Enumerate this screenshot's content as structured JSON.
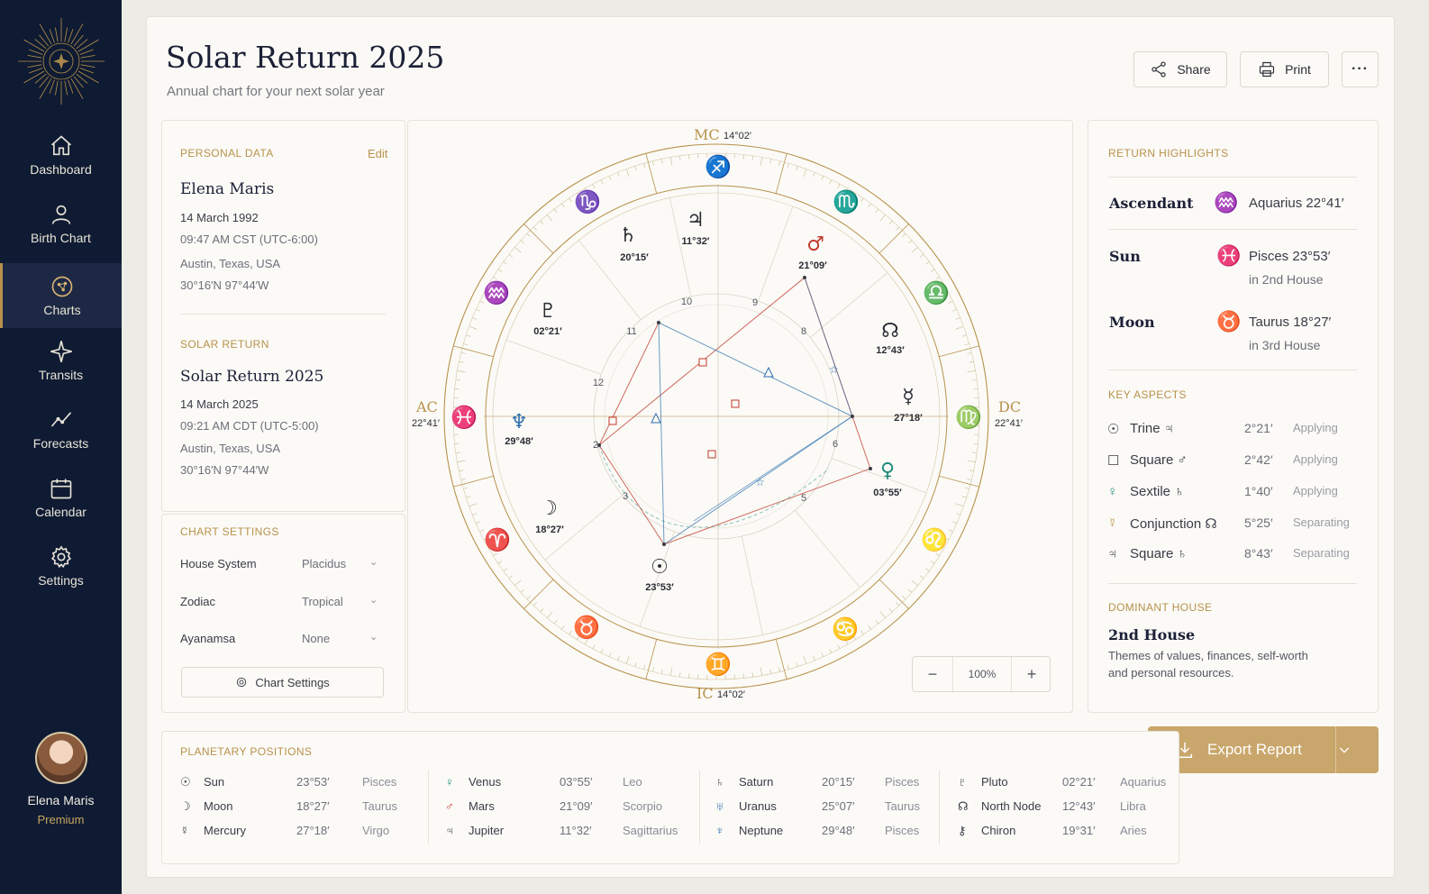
{
  "sidebar": {
    "items": [
      {
        "label": "Dashboard",
        "icon": "home-icon"
      },
      {
        "label": "Birth Chart",
        "icon": "person-icon"
      },
      {
        "label": "Charts",
        "icon": "chart-wheel-icon",
        "active": true
      },
      {
        "label": "Transits",
        "icon": "sparkle-icon"
      },
      {
        "label": "Forecasts",
        "icon": "trend-line-icon"
      },
      {
        "label": "Calendar",
        "icon": "calendar-icon"
      },
      {
        "label": "Settings",
        "icon": "gear-icon"
      }
    ],
    "user": {
      "name": "Elena Maris",
      "plan": "Premium"
    }
  },
  "header": {
    "title": "Solar Return 2025",
    "subtitle": "Annual chart for your next solar year",
    "share": "Share",
    "print": "Print",
    "more": "···"
  },
  "personal": {
    "heading": "PERSONAL DATA",
    "edit": "Edit",
    "name": "Elena Maris",
    "date": "14 March 1992",
    "time": "09:47 AM  CST (UTC-6:00)",
    "place": "Austin, Texas, USA",
    "coords": "30°16′N   97°44′W"
  },
  "solar_return": {
    "heading": "SOLAR RETURN",
    "name": "Solar Return 2025",
    "date": "14 March 2025",
    "time": "09:21 AM  CDT (UTC-5:00)",
    "place": "Austin, Texas, USA",
    "coords": "30°16′N   97°44′W"
  },
  "settings": {
    "heading": "CHART SETTINGS",
    "rows": [
      {
        "label": "House System",
        "value": "Placidus"
      },
      {
        "label": "Zodiac",
        "value": "Tropical"
      },
      {
        "label": "Ayanamsa",
        "value": "None"
      }
    ],
    "button": "Chart Settings"
  },
  "wheel": {
    "angles": {
      "mc": {
        "label": "MC",
        "deg": "14°02′"
      },
      "ic": {
        "label": "IC",
        "deg": "14°02′"
      },
      "ac": {
        "label": "AC",
        "deg": "22°41′"
      },
      "dc": {
        "label": "DC",
        "deg": "22°41′"
      }
    },
    "house_numbers": [
      "10",
      "9",
      "8",
      "11",
      "12",
      "2",
      "3",
      "5",
      "6"
    ],
    "planets": [
      {
        "glyph": "♄",
        "deg": "20°15′"
      },
      {
        "glyph": "♃",
        "deg": "11°32′"
      },
      {
        "glyph": "♂",
        "deg": "21°09′"
      },
      {
        "glyph": "♇",
        "deg": "02°21′"
      },
      {
        "glyph": "☊",
        "deg": "12°43′"
      },
      {
        "glyph": "☿",
        "deg": "27°18′"
      },
      {
        "glyph": "♆",
        "deg": "29°48′"
      },
      {
        "glyph": "♀",
        "deg": "03°55′"
      },
      {
        "glyph": "☽",
        "deg": "18°27′"
      },
      {
        "glyph": "☉",
        "deg": "23°53′"
      }
    ],
    "signs": [
      "♑",
      "♏",
      "♎",
      "♍",
      "♌",
      "♋",
      "♊",
      "♉",
      "♈",
      "♓",
      "♒",
      "♐"
    ],
    "colors": {
      "gold": "#b8924b",
      "red": "#c0392b",
      "blue": "#2f6fae",
      "teal": "#1f8a7a"
    }
  },
  "zoom": {
    "minus": "−",
    "value": "100%",
    "plus": "+"
  },
  "highlights": {
    "heading": "RETURN HIGHLIGHTS",
    "items": [
      {
        "label": "Ascendant",
        "glyph": "♒",
        "value": "Aquarius 22°41′",
        "sub": ""
      },
      {
        "label": "Sun",
        "glyph": "♓",
        "value": "Pisces  23°53′",
        "sub": "in 2nd House"
      },
      {
        "label": "Moon",
        "glyph": "♉",
        "value": "Taurus  18°27′",
        "sub": "in 3rd House"
      }
    ]
  },
  "aspects": {
    "heading": "KEY ASPECTS",
    "items": [
      {
        "glyph": "☉",
        "name": "Trine ♃",
        "orb": "2°21′",
        "state": "Applying"
      },
      {
        "glyph": "☐",
        "name": "Square ♂",
        "orb": "2°42′",
        "state": "Applying"
      },
      {
        "glyph": "♀",
        "name": "Sextile ♄",
        "orb": "1°40′",
        "state": "Applying"
      },
      {
        "glyph": "☿",
        "name": "Conjunction ☊",
        "orb": "5°25′",
        "state": "Separating"
      },
      {
        "glyph": "♃",
        "name": "Square ♄",
        "orb": "8°43′",
        "state": "Separating"
      }
    ]
  },
  "dominant": {
    "heading": "DOMINANT HOUSE",
    "title": "2nd House",
    "text1": "Themes of values, finances, self-worth",
    "text2": "and personal resources."
  },
  "export": {
    "label": "Export Report"
  },
  "positions": {
    "heading": "PLANETARY POSITIONS",
    "columns": [
      [
        {
          "glyph": "☉",
          "name": "Sun",
          "deg": "23°53′",
          "sign": "Pisces"
        },
        {
          "glyph": "☽",
          "name": "Moon",
          "deg": "18°27′",
          "sign": "Taurus"
        },
        {
          "glyph": "☿",
          "name": "Mercury",
          "deg": "27°18′",
          "sign": "Virgo"
        }
      ],
      [
        {
          "glyph": "♀",
          "name": "Venus",
          "deg": "03°55′",
          "sign": "Leo"
        },
        {
          "glyph": "♂",
          "name": "Mars",
          "deg": "21°09′",
          "sign": "Scorpio"
        },
        {
          "glyph": "♃",
          "name": "Jupiter",
          "deg": "11°32′",
          "sign": "Sagittarius"
        }
      ],
      [
        {
          "glyph": "♄",
          "name": "Saturn",
          "deg": "20°15′",
          "sign": "Pisces"
        },
        {
          "glyph": "♅",
          "name": "Uranus",
          "deg": "25°07′",
          "sign": "Taurus"
        },
        {
          "glyph": "♆",
          "name": "Neptune",
          "deg": "29°48′",
          "sign": "Pisces"
        }
      ],
      [
        {
          "glyph": "♇",
          "name": "Pluto",
          "deg": "02°21′",
          "sign": "Aquarius"
        },
        {
          "glyph": "☊",
          "name": "North Node",
          "deg": "12°43′",
          "sign": "Libra"
        },
        {
          "glyph": "⚷",
          "name": "Chiron",
          "deg": "19°31′",
          "sign": "Aries"
        }
      ]
    ]
  }
}
